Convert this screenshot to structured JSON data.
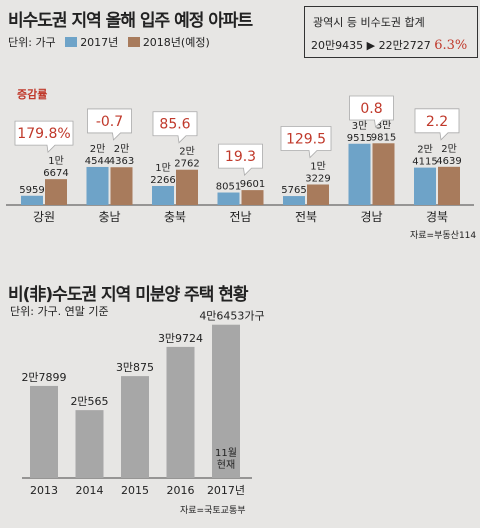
{
  "chart1": {
    "title": "비수도권 지역 올해 입주 예정 아파트",
    "unit_label": "단위: 가구",
    "legend": [
      {
        "label": "2017년",
        "color": "#6ea3c8"
      },
      {
        "label": "2018년(예정)",
        "color": "#a87b5c"
      }
    ],
    "summary": {
      "title": "광역시 등 비수도권 합계",
      "from": "20만9435",
      "arrow": "▶",
      "to": "22만2727",
      "rate": "6.3%"
    },
    "rate_caption": "증감률",
    "source": "자료=부동산114"
  },
  "chart2": {
    "title": "비(非)수도권 지역 미분양 주택 현황",
    "unit_label": "단위: 가구. 연말 기준",
    "source": "자료=국토교통부",
    "bar_color": "#a7a7a7"
  },
  "chart_data": [
    {
      "type": "bar",
      "title": "비수도권 지역 올해 입주 예정 아파트",
      "ylabel": "가구",
      "categories": [
        "강원",
        "충남",
        "충북",
        "전남",
        "전북",
        "경남",
        "경북"
      ],
      "series": [
        {
          "name": "2017년",
          "values": [
            5959,
            24544,
            12266,
            8051,
            5765,
            39515,
            24115
          ],
          "labels": [
            "5959",
            "2만\n4544",
            "1만\n2266",
            "8051",
            "5765",
            "3만\n9515",
            "2만\n4115"
          ]
        },
        {
          "name": "2018년(예정)",
          "values": [
            16674,
            24363,
            22762,
            9601,
            13229,
            39815,
            24639
          ],
          "labels": [
            "1만\n6674",
            "2만\n4363",
            "2만\n2762",
            "9601",
            "1만\n3229",
            "3만\n9815",
            "2만\n4639"
          ]
        }
      ],
      "change_rates": [
        "179.8%",
        "-0.7",
        "85.6",
        "19.3",
        "129.5",
        "0.8",
        "2.2"
      ]
    },
    {
      "type": "bar",
      "title": "비(非)수도권 지역 미분양 주택 현황",
      "ylabel": "가구",
      "categories": [
        "2013",
        "2014",
        "2015",
        "2016",
        "2017년"
      ],
      "values": [
        27899,
        20565,
        30875,
        39724,
        46453
      ],
      "labels": [
        "2만7899",
        "2만565",
        "3만875",
        "3만9724",
        "4만6453가구"
      ],
      "annotation": "11월\n현재"
    }
  ]
}
